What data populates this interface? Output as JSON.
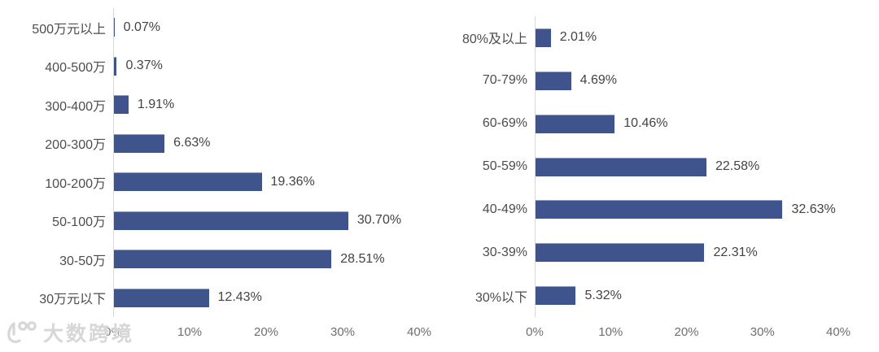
{
  "watermark": {
    "text": "大数跨境",
    "logo": "100-swirl-logo"
  },
  "colors": {
    "bar": "#3f538c",
    "bar_edge": "#8c9cc5",
    "axis_line": "#d9d9d9",
    "category_label": "#4d4d4d",
    "value_label": "#434343",
    "tick_label": "#6e6e6e",
    "watermark": "#d7d7d7"
  },
  "chart_data": [
    {
      "type": "bar",
      "orientation": "horizontal",
      "title": "",
      "xlabel": "",
      "ylabel": "",
      "grid": false,
      "legend": false,
      "xlim": [
        0,
        40
      ],
      "x_ticks": [
        "0%",
        "10%",
        "20%",
        "30%",
        "40%"
      ],
      "categories": [
        "500万元以上",
        "400-500万",
        "300-400万",
        "200-300万",
        "100-200万",
        "50-100万",
        "30-50万",
        "30万元以下"
      ],
      "values": [
        0.07,
        0.37,
        1.91,
        6.63,
        19.36,
        30.7,
        28.51,
        12.43
      ],
      "value_labels": [
        "0.07%",
        "0.37%",
        "1.91%",
        "6.63%",
        "19.36%",
        "30.70%",
        "28.51%",
        "12.43%"
      ]
    },
    {
      "type": "bar",
      "orientation": "horizontal",
      "title": "",
      "xlabel": "",
      "ylabel": "",
      "grid": false,
      "legend": false,
      "xlim": [
        0,
        40
      ],
      "x_ticks": [
        "0%",
        "10%",
        "20%",
        "30%",
        "40%"
      ],
      "categories": [
        "80%及以上",
        "70-79%",
        "60-69%",
        "50-59%",
        "40-49%",
        "30-39%",
        "30%以下"
      ],
      "values": [
        2.01,
        4.69,
        10.46,
        22.58,
        32.63,
        22.31,
        5.32
      ],
      "value_labels": [
        "2.01%",
        "4.69%",
        "10.46%",
        "22.58%",
        "32.63%",
        "22.31%",
        "5.32%"
      ]
    }
  ]
}
